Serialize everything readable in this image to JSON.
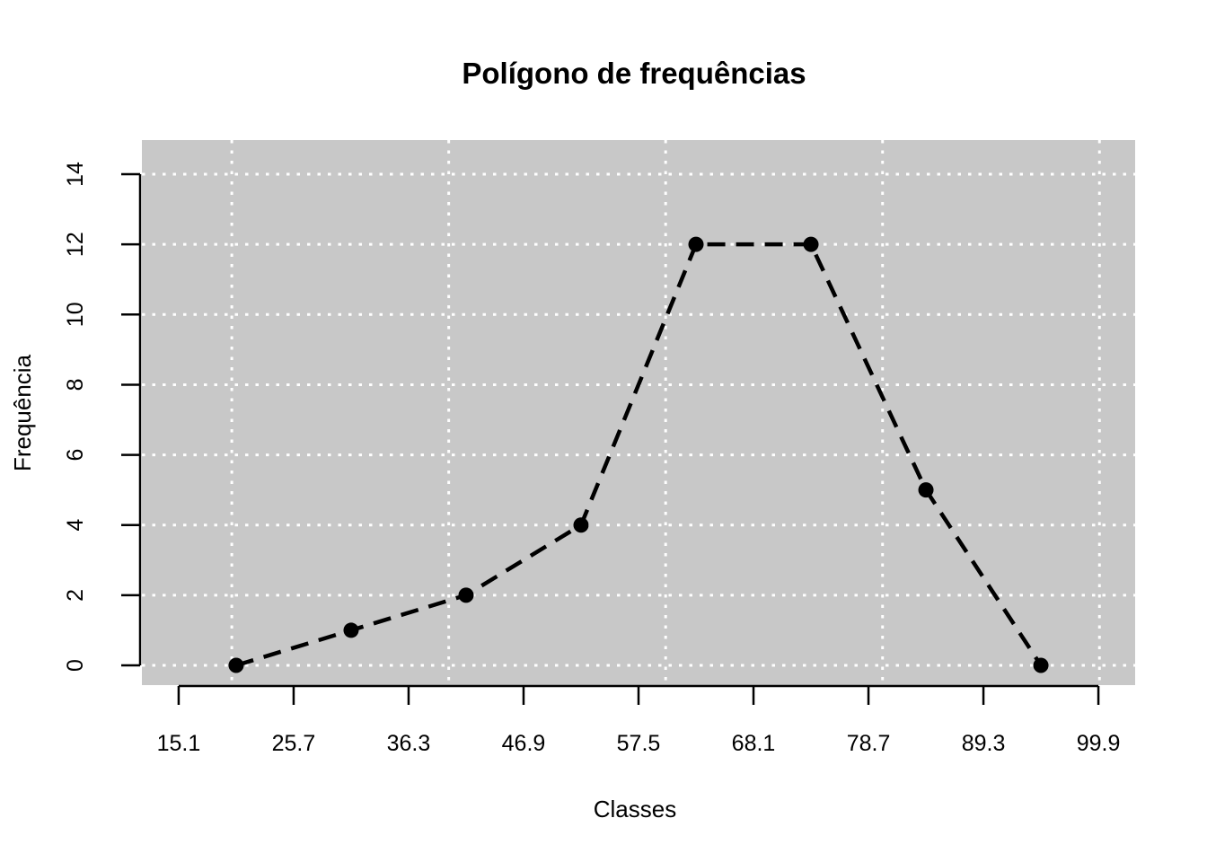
{
  "chart_data": {
    "type": "line",
    "title": "Polígono de frequências",
    "xlabel": "Classes",
    "ylabel": "Frequência",
    "series": [
      {
        "name": "Frequência",
        "x": [
          20.4,
          31.0,
          41.6,
          52.2,
          62.8,
          73.4,
          84.0,
          94.6
        ],
        "values": [
          0,
          1,
          2,
          4,
          12,
          12,
          5,
          0
        ]
      }
    ],
    "x_tick_labels": [
      "15.1",
      "25.7",
      "36.3",
      "46.9",
      "57.5",
      "68.1",
      "78.7",
      "89.3",
      "99.9"
    ],
    "x_tick_values": [
      15.1,
      25.7,
      36.3,
      46.9,
      57.5,
      68.1,
      78.7,
      89.3,
      99.9
    ],
    "y_tick_labels": [
      "0",
      "2",
      "4",
      "6",
      "8",
      "10",
      "12",
      "14"
    ],
    "y_tick_values": [
      0,
      2,
      4,
      6,
      8,
      10,
      12,
      14
    ],
    "xlim": [
      11.71,
      103.29
    ],
    "ylim": [
      -0.563,
      14.973
    ],
    "grid": {
      "on": true,
      "x_lines": [
        20,
        40,
        60,
        80,
        100
      ],
      "y_lines": [
        0,
        2,
        4,
        6,
        8,
        10,
        12,
        14
      ],
      "line_style": "dotted",
      "color": "#ffffff"
    },
    "legend": "none",
    "style": {
      "plot_background": "#c8c8c8",
      "page_background": "#ffffff",
      "line_color": "#000000",
      "line_style": "dashed",
      "point_style": "filled-circle",
      "point_color": "#000000",
      "axis_color": "#000000"
    }
  }
}
